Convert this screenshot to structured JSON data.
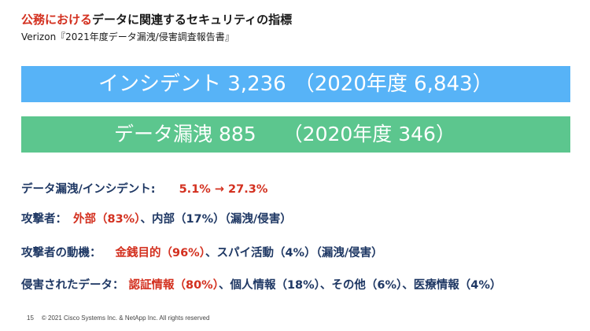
{
  "header": {
    "title_red": "公務における",
    "title_rest": "データに関連するセキュリティの指標",
    "subtitle": "Verizon『2021年度データ漏洩/侵害調査報告書』"
  },
  "banners": {
    "incidents": {
      "label": "インシデント 3,236",
      "compare": "（2020年度 6,843）"
    },
    "breaches": {
      "label": "データ漏洩  885",
      "compare": "（2020年度 346）"
    }
  },
  "stats": {
    "ratio": {
      "label": "データ漏洩/インシデント:",
      "value": "5.1% → 27.3%"
    },
    "attackers": {
      "label": "攻撃者：",
      "value": "外部（83%）",
      "rest": "、内部（17%）（漏洩/侵害）"
    },
    "motive": {
      "label": "攻撃者の動機：",
      "value": "金銭目的（96%）",
      "rest": "、スパイ活動（4%）（漏洩/侵害）"
    },
    "compromised": {
      "label": "侵害されたデータ：",
      "value": "認証情報（80%）",
      "rest": "、個人情報（18%）、その他（6%）、医療情報（4%）"
    }
  },
  "footer": {
    "page_number": "15",
    "copyright": "© 2021 Cisco Systems Inc. & NetApp Inc. All rights reserved"
  },
  "colors": {
    "accent_red": "#d3301f",
    "navy_text": "#1f3864",
    "banner_blue": "#57b3f7",
    "banner_green": "#5cc68e"
  }
}
